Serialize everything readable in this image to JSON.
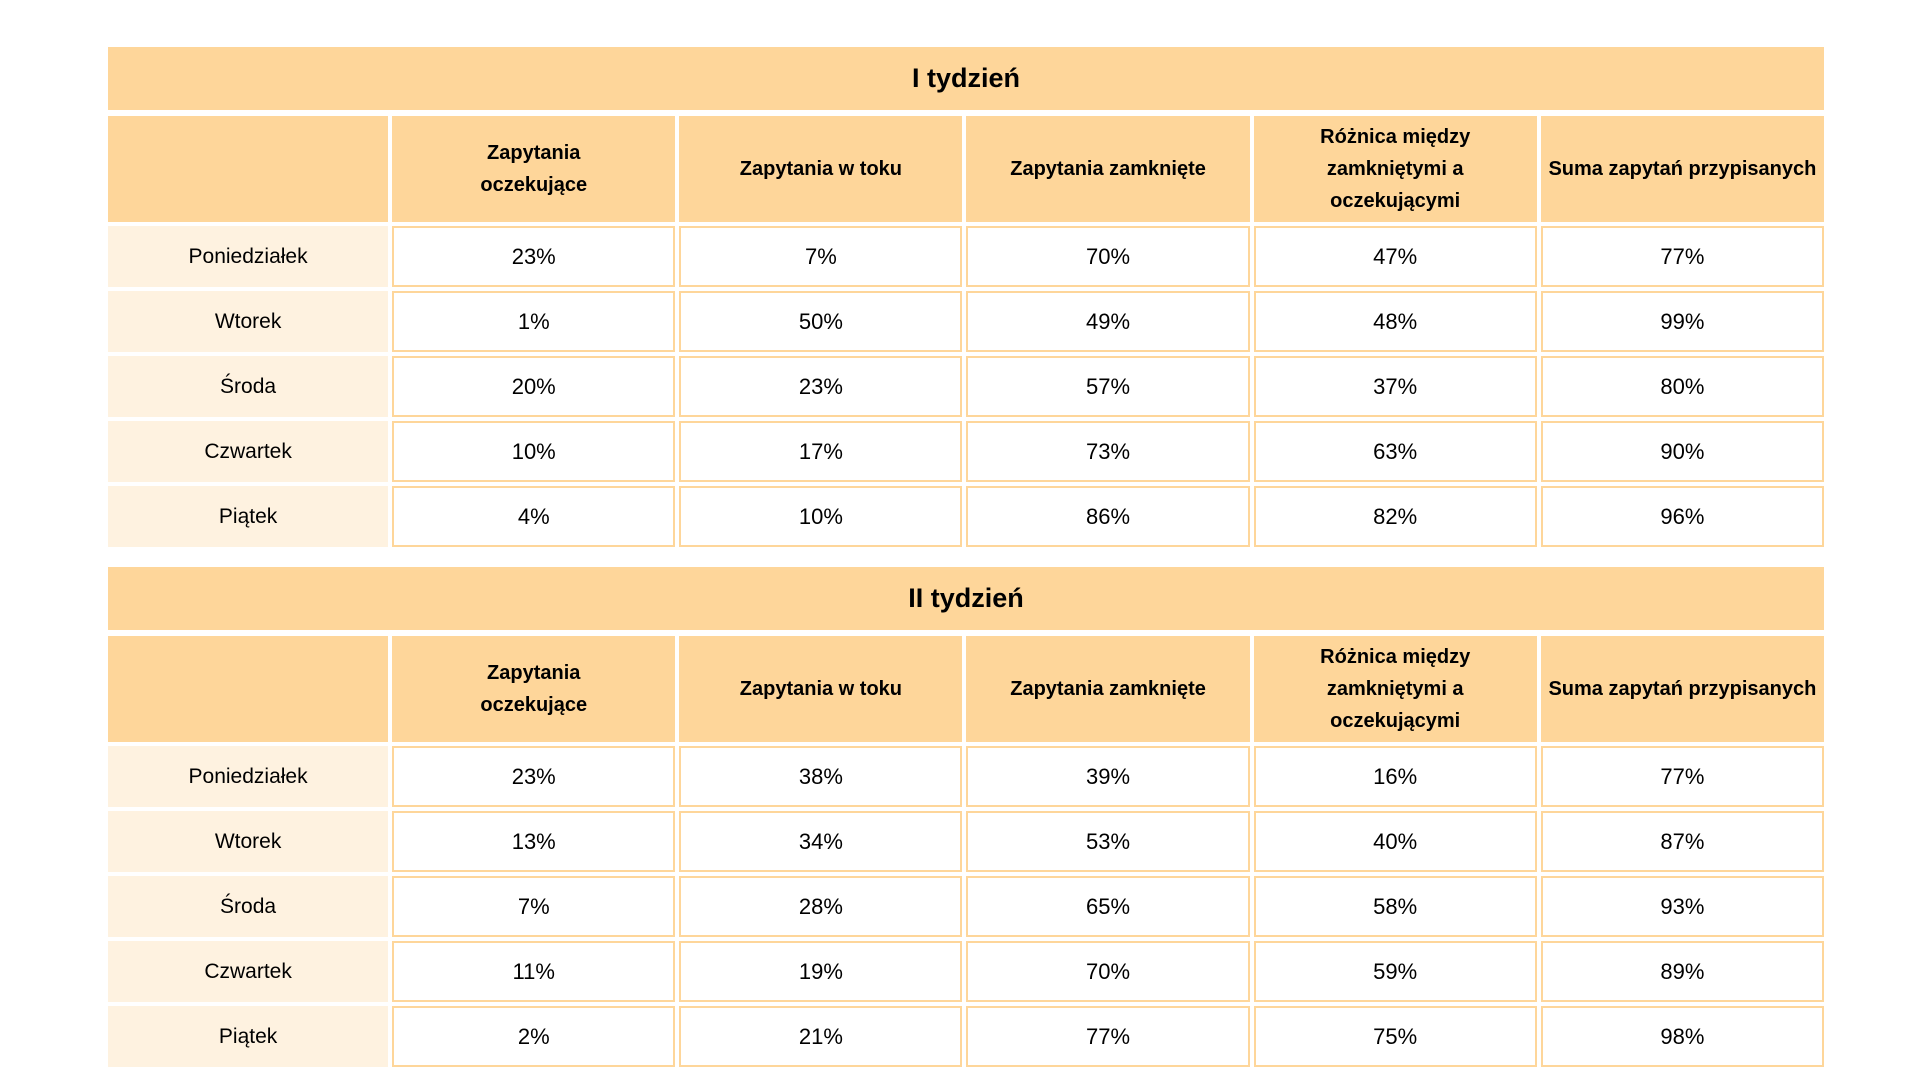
{
  "columns": [
    "Zapytania oczekujące",
    "Zapytania w toku",
    "Zapytania zamknięte",
    "Różnica między zamkniętymi a oczekującymi",
    "Suma zapytań przypisanych"
  ],
  "weeks": [
    {
      "title": "I tydzień",
      "rows": [
        {
          "day": "Poniedziałek",
          "values": [
            "23%",
            "7%",
            "70%",
            "47%",
            "77%"
          ]
        },
        {
          "day": "Wtorek",
          "values": [
            "1%",
            "50%",
            "49%",
            "48%",
            "99%"
          ]
        },
        {
          "day": "Środa",
          "values": [
            "20%",
            "23%",
            "57%",
            "37%",
            "80%"
          ]
        },
        {
          "day": "Czwartek",
          "values": [
            "10%",
            "17%",
            "73%",
            "63%",
            "90%"
          ]
        },
        {
          "day": "Piątek",
          "values": [
            "4%",
            "10%",
            "86%",
            "82%",
            "96%"
          ]
        }
      ]
    },
    {
      "title": "II tydzień",
      "rows": [
        {
          "day": "Poniedziałek",
          "values": [
            "23%",
            "38%",
            "39%",
            "16%",
            "77%"
          ]
        },
        {
          "day": "Wtorek",
          "values": [
            "13%",
            "34%",
            "53%",
            "40%",
            "87%"
          ]
        },
        {
          "day": "Środa",
          "values": [
            "7%",
            "28%",
            "65%",
            "58%",
            "93%"
          ]
        },
        {
          "day": "Czwartek",
          "values": [
            "11%",
            "19%",
            "70%",
            "59%",
            "89%"
          ]
        },
        {
          "day": "Piątek",
          "values": [
            "2%",
            "21%",
            "77%",
            "75%",
            "98%"
          ]
        }
      ]
    }
  ],
  "colors": {
    "header_fill": "#fed69a",
    "day_fill": "#fef2e0",
    "cell_fill": "#ffffff",
    "cell_border": "#fed69a"
  }
}
